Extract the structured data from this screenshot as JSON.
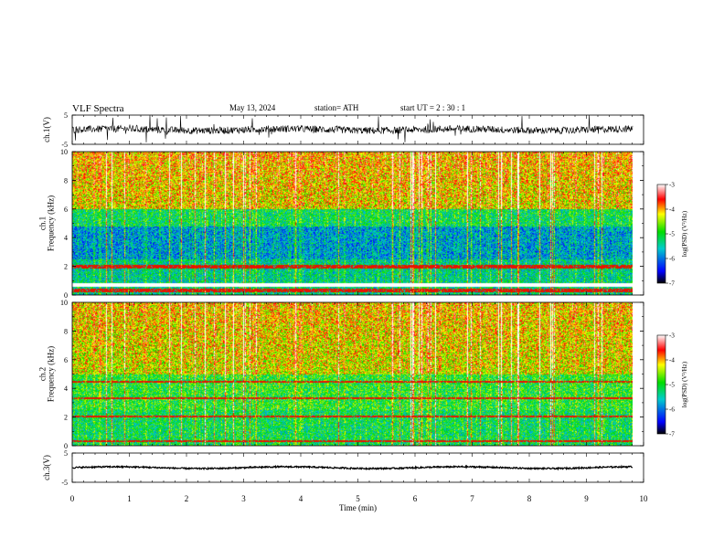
{
  "header": {
    "title": "VLF  Spectra",
    "date": "May 13, 2024",
    "station": "station= ATH",
    "start": "start  UT  =    2  : 30 : 1"
  },
  "chart_data": {
    "type": "heatmap",
    "title": "VLF  Spectra",
    "xlabel": "Time  (min)",
    "xlim": [
      0,
      10
    ],
    "x_ticks": [
      "0",
      "1",
      "2",
      "3",
      "4",
      "5",
      "6",
      "7",
      "8",
      "9",
      "10"
    ],
    "data_end_min": 9.8,
    "panels": [
      {
        "id": "ch1-waveform",
        "type": "line",
        "ylabel": "ch.1(V)",
        "ylim": [
          -5,
          5
        ],
        "y_ticks": [
          "5",
          "-5"
        ],
        "baseline": 0,
        "noise_amplitude": 1.2,
        "spike_amplitude": 5
      },
      {
        "id": "ch1-spectrogram",
        "type": "heatmap",
        "ylabel": "ch.1\nFrequency  (kHz)",
        "ylim": [
          0,
          10
        ],
        "y_ticks": [
          "0",
          "2",
          "4",
          "6",
          "8",
          "10"
        ],
        "colorbar": {
          "label": "log(PSD) (V²/Hz)",
          "range": [
            -7,
            -3
          ],
          "ticks": [
            "-3",
            "-4",
            "-5",
            "-6",
            "-7"
          ]
        },
        "lines_khz": [
          2.1,
          1.95,
          0.45,
          0.3
        ],
        "gap_band_khz": [
          0.55,
          0.85
        ]
      },
      {
        "id": "ch2-spectrogram",
        "type": "heatmap",
        "ylabel": "ch.2\nFrequency  (kHz)",
        "ylim": [
          0,
          10
        ],
        "y_ticks": [
          "0",
          "2",
          "4",
          "6",
          "8",
          "10"
        ],
        "colorbar": {
          "label": "log(PSD) (V²/Hz)",
          "range": [
            -7,
            -3
          ],
          "ticks": [
            "-3",
            "-4",
            "-5",
            "-6",
            "-7"
          ]
        },
        "lines_khz": [
          4.5,
          3.4,
          2.1,
          0.4
        ]
      },
      {
        "id": "ch3-waveform",
        "type": "line",
        "ylabel": "ch.3(V)",
        "ylim": [
          -5,
          5
        ],
        "y_ticks": [
          "5",
          "-5"
        ],
        "baseline": 0,
        "noise_amplitude": 0.25
      }
    ]
  }
}
